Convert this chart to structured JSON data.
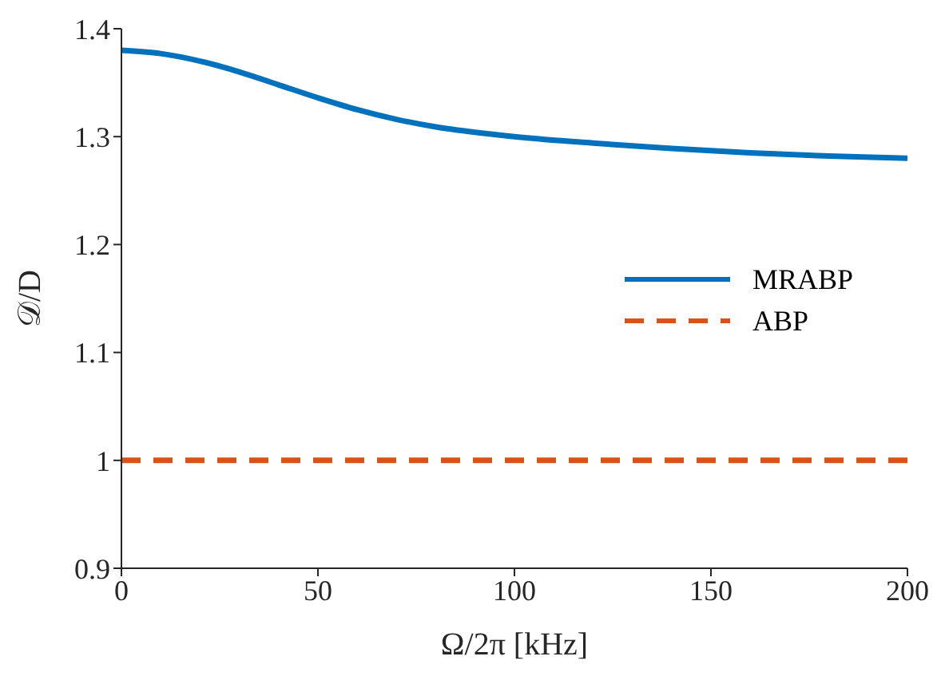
{
  "chart_data": {
    "type": "line",
    "xlabel": "Ω/2π [kHz]",
    "ylabel": "𝒟/D",
    "x": [
      0,
      10,
      20,
      30,
      40,
      50,
      60,
      70,
      80,
      90,
      100,
      120,
      140,
      160,
      180,
      200
    ],
    "series": [
      {
        "name": "MRABP",
        "color": "#0072bd",
        "line_style": "solid",
        "values": [
          1.38,
          1.377,
          1.37,
          1.36,
          1.348,
          1.336,
          1.325,
          1.316,
          1.309,
          1.304,
          1.3,
          1.294,
          1.289,
          1.285,
          1.282,
          1.28
        ]
      },
      {
        "name": "ABP",
        "color": "#d95319",
        "line_style": "dashed",
        "values": [
          1,
          1,
          1,
          1,
          1,
          1,
          1,
          1,
          1,
          1,
          1,
          1,
          1,
          1,
          1,
          1
        ]
      }
    ],
    "xlim": [
      0,
      200
    ],
    "xticks": [
      0,
      50,
      100,
      150,
      200
    ],
    "ylim": [
      0.9,
      1.4
    ],
    "yticks": [
      0.9,
      1,
      1.1,
      1.2,
      1.3,
      1.4
    ],
    "grid": false,
    "legend": "right",
    "marker": "none"
  }
}
